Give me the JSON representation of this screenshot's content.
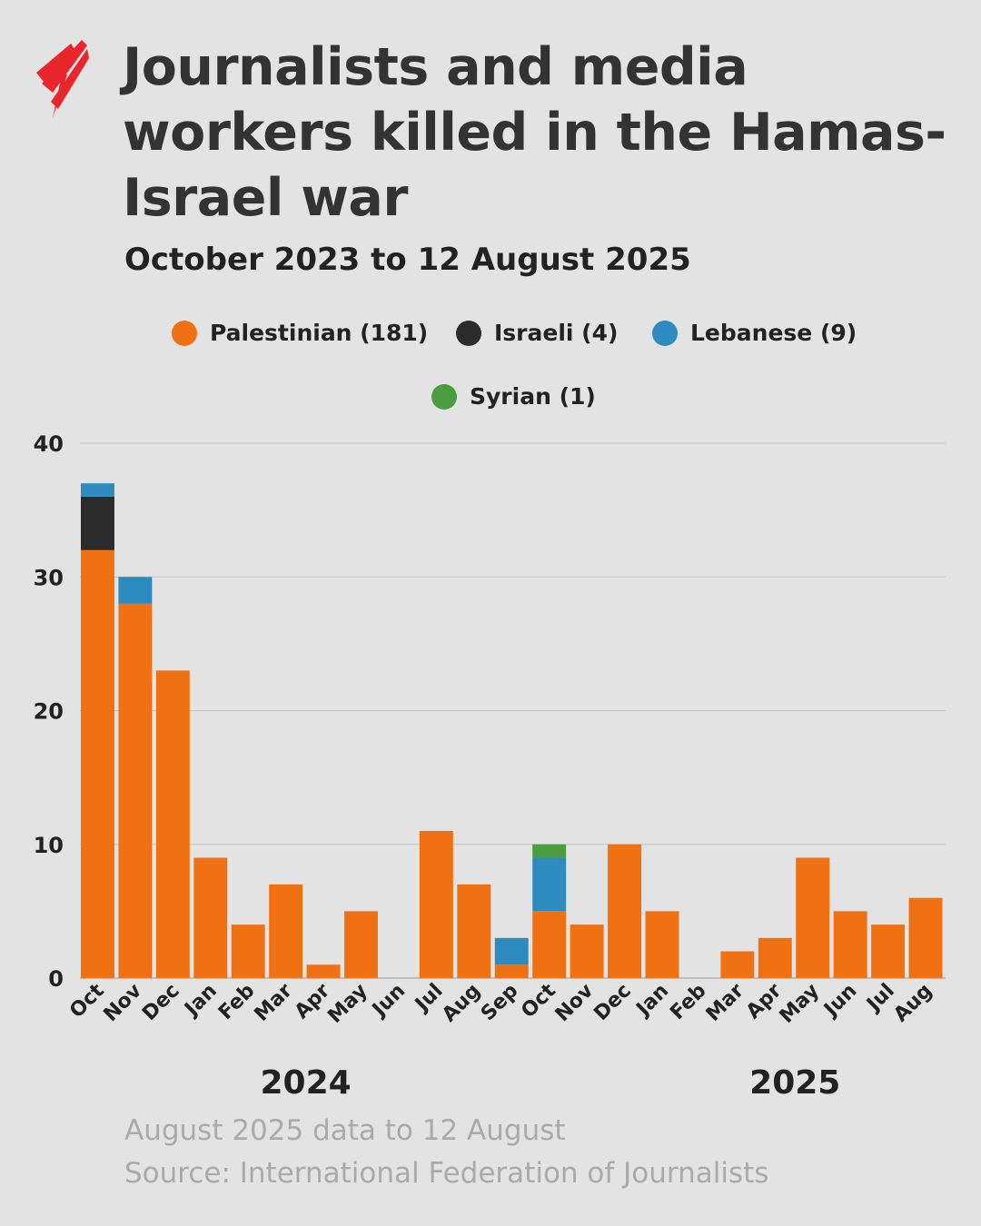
{
  "title": "Journalists and media workers killed in the Hamas-Israel war",
  "subtitle": "October 2023 to 12 August 2025",
  "colors": {
    "background": "#e3e3e3",
    "Palestinian": "#f07114",
    "Israeli": "#2b2b2b",
    "Lebanese": "#2e8bc0",
    "Syrian": "#4a9e3f",
    "logo": "#e8262b"
  },
  "legend": [
    {
      "label": "Palestinian (181)",
      "color": "#f07114"
    },
    {
      "label": "Israeli (4)",
      "color": "#2b2b2b"
    },
    {
      "label": "Lebanese (9)",
      "color": "#2e8bc0"
    },
    {
      "label": "Syrian (1)",
      "color": "#4a9e3f"
    }
  ],
  "chart_data": {
    "type": "bar",
    "stacked": true,
    "categories": [
      "Oct",
      "Nov",
      "Dec",
      "Jan",
      "Feb",
      "Mar",
      "Apr",
      "May",
      "Jun",
      "Jul",
      "Aug",
      "Sep",
      "Oct",
      "Nov",
      "Dec",
      "Jan",
      "Feb",
      "Mar",
      "Apr",
      "May",
      "Jun",
      "Jul",
      "Aug"
    ],
    "year_labels": [
      {
        "label": "2024",
        "from": 3,
        "to": 8
      },
      {
        "label": "2025",
        "from": 15,
        "to": 22
      }
    ],
    "series": [
      {
        "name": "Palestinian (181)",
        "color": "#f07114",
        "values": [
          32,
          28,
          23,
          9,
          4,
          7,
          1,
          5,
          0,
          11,
          7,
          1,
          5,
          4,
          10,
          5,
          0,
          2,
          3,
          9,
          5,
          4,
          6
        ]
      },
      {
        "name": "Israeli (4)",
        "color": "#2b2b2b",
        "values": [
          4,
          0,
          0,
          0,
          0,
          0,
          0,
          0,
          0,
          0,
          0,
          0,
          0,
          0,
          0,
          0,
          0,
          0,
          0,
          0,
          0,
          0,
          0
        ]
      },
      {
        "name": "Lebanese (9)",
        "color": "#2e8bc0",
        "values": [
          1,
          2,
          0,
          0,
          0,
          0,
          0,
          0,
          0,
          0,
          0,
          2,
          4,
          0,
          0,
          0,
          0,
          0,
          0,
          0,
          0,
          0,
          0
        ]
      },
      {
        "name": "Syrian (1)",
        "color": "#4a9e3f",
        "values": [
          0,
          0,
          0,
          0,
          0,
          0,
          0,
          0,
          0,
          0,
          0,
          0,
          1,
          0,
          0,
          0,
          0,
          0,
          0,
          0,
          0,
          0,
          0
        ]
      }
    ],
    "yticks": [
      0,
      10,
      20,
      30,
      40
    ],
    "ylim": [
      0,
      40
    ],
    "grid": true,
    "legend_position": "top"
  },
  "notes": [
    "August 2025 data to 12 August",
    "Source: International Federation of Journalists"
  ]
}
